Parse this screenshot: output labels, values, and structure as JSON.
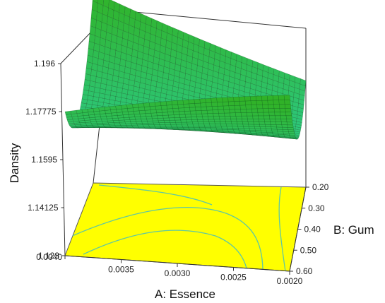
{
  "chart_data": {
    "type": "surface3d",
    "zlabel": "Dansity",
    "xlabel": "A: Essence",
    "ylabel": "B: Gum",
    "x_ticks": [
      "0.0040",
      "0.0035",
      "0.0030",
      "0.0025",
      "0.0020"
    ],
    "y_ticks": [
      "0.20",
      "0.30",
      "0.40",
      "0.50",
      "0.60"
    ],
    "z_ticks": [
      "1.123",
      "1.14125",
      "1.1595",
      "1.17775",
      "1.196"
    ],
    "xlim": [
      0.002,
      0.004
    ],
    "ylim": [
      0.2,
      0.6
    ],
    "zlim": [
      1.123,
      1.196
    ],
    "corner_values": {
      "x0.0040_y0.20": 1.196,
      "x0.0020_y0.20": 1.172,
      "x0.0040_y0.60": 1.142,
      "x0.0020_y0.60": 1.164
    },
    "surface_min": 1.131,
    "grid": true,
    "floor_contours": true,
    "colors": {
      "surface_high": "#2fb82a",
      "surface_low": "#28e6f0",
      "floor": "#ffff00",
      "contour": "#5fc7a3",
      "mesh": "#0a3d12"
    }
  }
}
